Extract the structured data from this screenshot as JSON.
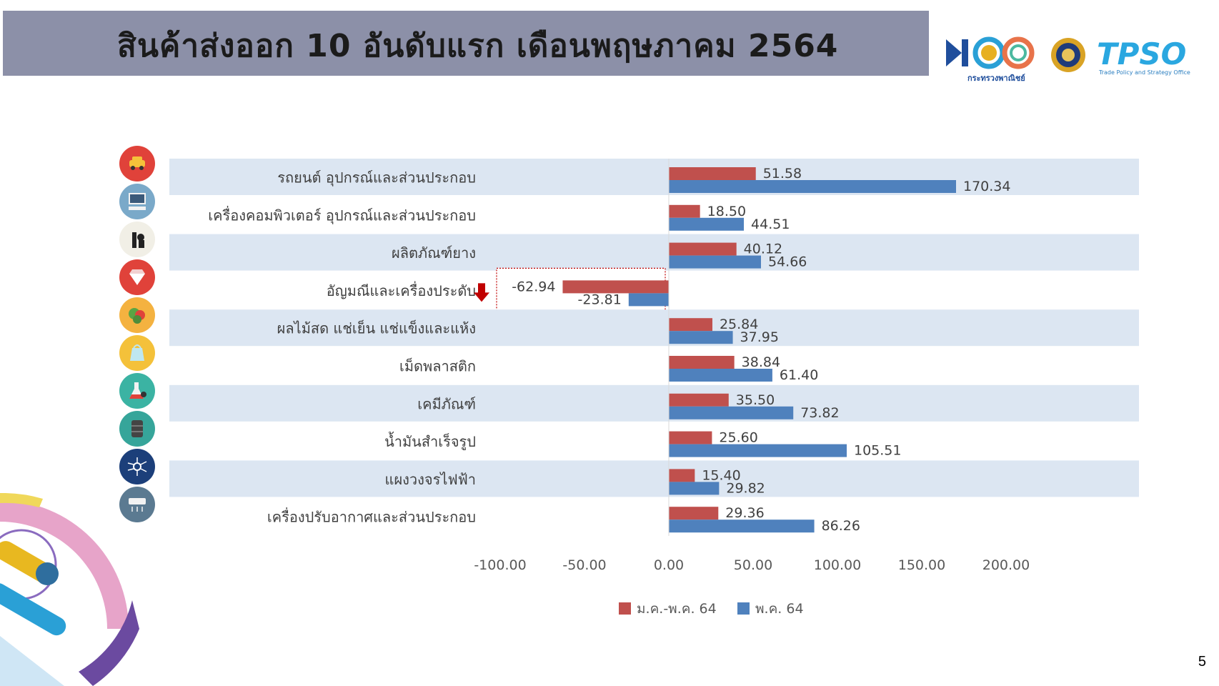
{
  "header": {
    "title": "สินค้าส่งออก 10 อันดับแรก เดือนพฤษภาคม 2564"
  },
  "logos": {
    "moc_logo_text": "กระทรวงพาณิชย์",
    "tpso_text": "TPSO",
    "tpso_tagline": "Trade Policy and Strategy Office"
  },
  "page_number": "5",
  "icons": [
    "car-icon",
    "computer-icon",
    "rubber-product-icon",
    "gem-icon",
    "vegetable-icon",
    "plastic-bag-icon",
    "chemical-flask-icon",
    "oil-barrel-icon",
    "circuit-icon",
    "air-conditioner-icon"
  ],
  "colors": {
    "series1": "#c0504d",
    "series2": "#4f81bd",
    "band": "#dce6f2",
    "title_bar": "#8c90a8",
    "highlight_arrow": "#c00000"
  },
  "chart_data": {
    "type": "bar",
    "orientation": "horizontal",
    "categories": [
      "รถยนต์ อุปกรณ์และส่วนประกอบ",
      "เครื่องคอมพิวเตอร์ อุปกรณ์และส่วนประกอบ",
      "ผลิตภัณฑ์ยาง",
      "อัญมณีและเครื่องประดับ",
      "ผลไม้สด แช่เย็น แช่แข็งและแห้ง",
      "เม็ดพลาสติก",
      "เคมีภัณฑ์",
      "น้ำมันสำเร็จรูป",
      "แผงวงจรไฟฟ้า",
      "เครื่องปรับอากาศและส่วนประกอบ"
    ],
    "series": [
      {
        "name": "ม.ค.-พ.ค. 64",
        "values": [
          51.58,
          18.5,
          40.12,
          -62.94,
          25.84,
          38.84,
          35.5,
          25.6,
          15.4,
          29.36
        ],
        "labels": [
          "51.58",
          "18.50",
          "40.12",
          "-62.94",
          "25.84",
          "38.84",
          "35.50",
          "25.60",
          "15.40",
          "29.36"
        ]
      },
      {
        "name": "พ.ค. 64",
        "values": [
          170.34,
          44.51,
          54.66,
          -23.81,
          37.95,
          61.4,
          73.82,
          105.51,
          29.82,
          86.26
        ],
        "labels": [
          "170.34",
          "44.51",
          "54.66",
          "-23.81",
          "37.95",
          "61.40",
          "73.82",
          "105.51",
          "29.82",
          "86.26"
        ]
      }
    ],
    "xlim": [
      -100,
      200
    ],
    "xticks": [
      "-100.00",
      "-50.00",
      "0.00",
      "50.00",
      "100.00",
      "150.00",
      "200.00"
    ],
    "xtick_values": [
      -100,
      -50,
      0,
      50,
      100,
      150,
      200
    ],
    "legend_position": "bottom",
    "highlighted_category": "อัญมณีและเครื่องประดับ",
    "grid": false
  }
}
